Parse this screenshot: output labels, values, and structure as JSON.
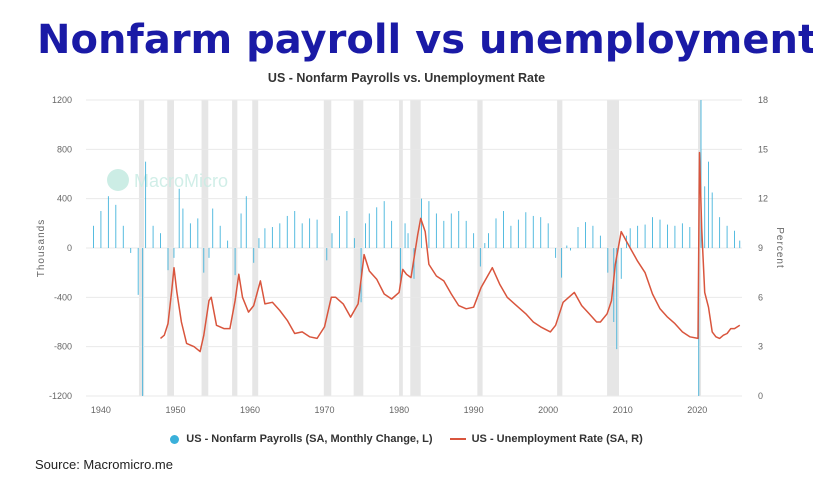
{
  "page_title": "Nonfarm payroll vs unemployment",
  "source_text": "Source: Macromicro.me",
  "watermark_text": "MacroMicro",
  "colors": {
    "payroll": "#3ab0da",
    "unemployment": "#d9553d",
    "recession": "#e6e6e6",
    "title": "#1a1aa6"
  },
  "legend": {
    "payroll": "US - Nonfarm Payrolls (SA, Monthly Change, L)",
    "unemployment": "US - Unemployment Rate (SA, R)"
  },
  "chart_data": {
    "type": "bar+line",
    "title": "US - Nonfarm Payrolls vs. Unemployment Rate",
    "ylabel_left": "Thousands",
    "ylabel_right": "Percent",
    "xlim": [
      1938,
      2026
    ],
    "ylim_left": [
      -1200,
      1200
    ],
    "ylim_right": [
      0,
      18
    ],
    "x_ticks": [
      1940,
      1950,
      1960,
      1970,
      1980,
      1990,
      2000,
      2010,
      2020
    ],
    "y_left_ticks": [
      1200,
      800,
      400,
      0,
      -400,
      -800,
      -1200
    ],
    "y_right_ticks": [
      18,
      15,
      12,
      9,
      6,
      3,
      0
    ],
    "grid": "horizontal",
    "legend_position": "bottom",
    "recessions": [
      [
        1945.1,
        1945.8
      ],
      [
        1948.9,
        1949.8
      ],
      [
        1953.5,
        1954.4
      ],
      [
        1957.6,
        1958.3
      ],
      [
        1960.3,
        1961.1
      ],
      [
        1969.9,
        1970.9
      ],
      [
        1973.9,
        1975.2
      ],
      [
        1980.0,
        1980.5
      ],
      [
        1981.5,
        1982.9
      ],
      [
        1990.5,
        1991.2
      ],
      [
        2001.2,
        2001.9
      ],
      [
        2007.9,
        2009.5
      ],
      [
        2020.1,
        2020.4
      ]
    ],
    "series": [
      {
        "name": "US - Nonfarm Payrolls (SA, Monthly Change, L)",
        "kind": "bar",
        "points": [
          [
            1939.0,
            180
          ],
          [
            1940.0,
            300
          ],
          [
            1941.0,
            420
          ],
          [
            1942.0,
            350
          ],
          [
            1943.0,
            180
          ],
          [
            1944.0,
            -40
          ],
          [
            1945.0,
            -380
          ],
          [
            1945.6,
            -1200
          ],
          [
            1946.0,
            700
          ],
          [
            1947.0,
            180
          ],
          [
            1948.0,
            120
          ],
          [
            1949.0,
            -180
          ],
          [
            1949.8,
            -80
          ],
          [
            1950.5,
            480
          ],
          [
            1951.0,
            320
          ],
          [
            1952.0,
            200
          ],
          [
            1953.0,
            240
          ],
          [
            1953.8,
            -200
          ],
          [
            1954.5,
            -80
          ],
          [
            1955.0,
            320
          ],
          [
            1956.0,
            180
          ],
          [
            1957.0,
            60
          ],
          [
            1958.0,
            -220
          ],
          [
            1958.8,
            280
          ],
          [
            1959.5,
            420
          ],
          [
            1960.5,
            -120
          ],
          [
            1961.2,
            80
          ],
          [
            1962.0,
            160
          ],
          [
            1963.0,
            170
          ],
          [
            1964.0,
            200
          ],
          [
            1965.0,
            260
          ],
          [
            1966.0,
            300
          ],
          [
            1967.0,
            200
          ],
          [
            1968.0,
            240
          ],
          [
            1969.0,
            230
          ],
          [
            1970.3,
            -100
          ],
          [
            1971.0,
            120
          ],
          [
            1972.0,
            260
          ],
          [
            1973.0,
            300
          ],
          [
            1974.0,
            80
          ],
          [
            1974.9,
            -440
          ],
          [
            1975.5,
            200
          ],
          [
            1976.0,
            280
          ],
          [
            1977.0,
            330
          ],
          [
            1978.0,
            380
          ],
          [
            1979.0,
            220
          ],
          [
            1980.2,
            -300
          ],
          [
            1980.8,
            200
          ],
          [
            1981.2,
            120
          ],
          [
            1982.0,
            -250
          ],
          [
            1983.0,
            400
          ],
          [
            1984.0,
            380
          ],
          [
            1985.0,
            280
          ],
          [
            1986.0,
            220
          ],
          [
            1987.0,
            280
          ],
          [
            1988.0,
            300
          ],
          [
            1989.0,
            220
          ],
          [
            1990.0,
            120
          ],
          [
            1990.9,
            -150
          ],
          [
            1991.5,
            40
          ],
          [
            1992.0,
            120
          ],
          [
            1993.0,
            240
          ],
          [
            1994.0,
            300
          ],
          [
            1995.0,
            180
          ],
          [
            1996.0,
            230
          ],
          [
            1997.0,
            290
          ],
          [
            1998.0,
            260
          ],
          [
            1999.0,
            250
          ],
          [
            2000.0,
            200
          ],
          [
            2001.0,
            -80
          ],
          [
            2001.8,
            -240
          ],
          [
            2002.5,
            20
          ],
          [
            2003.0,
            -20
          ],
          [
            2004.0,
            170
          ],
          [
            2005.0,
            210
          ],
          [
            2006.0,
            180
          ],
          [
            2007.0,
            100
          ],
          [
            2008.0,
            -200
          ],
          [
            2008.8,
            -600
          ],
          [
            2009.2,
            -820
          ],
          [
            2009.8,
            -250
          ],
          [
            2010.5,
            100
          ],
          [
            2011.0,
            160
          ],
          [
            2012.0,
            180
          ],
          [
            2013.0,
            190
          ],
          [
            2014.0,
            250
          ],
          [
            2015.0,
            230
          ],
          [
            2016.0,
            190
          ],
          [
            2017.0,
            180
          ],
          [
            2018.0,
            200
          ],
          [
            2019.0,
            170
          ],
          [
            2020.2,
            -1200
          ],
          [
            2020.5,
            1200
          ],
          [
            2021.0,
            500
          ],
          [
            2021.5,
            700
          ],
          [
            2022.0,
            450
          ],
          [
            2023.0,
            250
          ],
          [
            2024.0,
            180
          ],
          [
            2025.0,
            140
          ],
          [
            2025.7,
            60
          ]
        ]
      },
      {
        "name": "US - Unemployment Rate (SA, R)",
        "kind": "line",
        "points": [
          [
            1948.0,
            3.5
          ],
          [
            1948.5,
            3.7
          ],
          [
            1949.0,
            4.4
          ],
          [
            1949.5,
            6.4
          ],
          [
            1949.8,
            7.8
          ],
          [
            1950.2,
            6.3
          ],
          [
            1950.8,
            4.5
          ],
          [
            1951.5,
            3.2
          ],
          [
            1952.5,
            3.0
          ],
          [
            1953.3,
            2.7
          ],
          [
            1953.8,
            3.7
          ],
          [
            1954.5,
            5.8
          ],
          [
            1954.8,
            6.0
          ],
          [
            1955.5,
            4.3
          ],
          [
            1956.5,
            4.1
          ],
          [
            1957.3,
            4.1
          ],
          [
            1958.0,
            5.8
          ],
          [
            1958.5,
            7.4
          ],
          [
            1959.0,
            6.0
          ],
          [
            1959.8,
            5.1
          ],
          [
            1960.5,
            5.5
          ],
          [
            1961.4,
            7.0
          ],
          [
            1962.0,
            5.6
          ],
          [
            1963.0,
            5.7
          ],
          [
            1964.0,
            5.2
          ],
          [
            1965.0,
            4.6
          ],
          [
            1966.0,
            3.8
          ],
          [
            1967.0,
            3.9
          ],
          [
            1968.0,
            3.6
          ],
          [
            1969.0,
            3.5
          ],
          [
            1970.0,
            4.2
          ],
          [
            1970.9,
            6.0
          ],
          [
            1971.5,
            6.0
          ],
          [
            1972.5,
            5.6
          ],
          [
            1973.5,
            4.8
          ],
          [
            1974.5,
            5.6
          ],
          [
            1975.3,
            8.6
          ],
          [
            1976.0,
            7.6
          ],
          [
            1977.0,
            7.1
          ],
          [
            1978.0,
            6.2
          ],
          [
            1979.0,
            5.9
          ],
          [
            1980.0,
            6.3
          ],
          [
            1980.5,
            7.7
          ],
          [
            1981.0,
            7.4
          ],
          [
            1981.6,
            7.2
          ],
          [
            1982.5,
            9.8
          ],
          [
            1982.9,
            10.8
          ],
          [
            1983.5,
            10.0
          ],
          [
            1984.0,
            8.0
          ],
          [
            1985.0,
            7.3
          ],
          [
            1986.0,
            7.0
          ],
          [
            1987.0,
            6.2
          ],
          [
            1988.0,
            5.5
          ],
          [
            1989.0,
            5.3
          ],
          [
            1990.0,
            5.4
          ],
          [
            1991.0,
            6.6
          ],
          [
            1992.5,
            7.8
          ],
          [
            1993.5,
            6.8
          ],
          [
            1994.5,
            6.0
          ],
          [
            1995.5,
            5.6
          ],
          [
            1997.0,
            5.0
          ],
          [
            1998.0,
            4.5
          ],
          [
            1999.0,
            4.2
          ],
          [
            2000.3,
            3.9
          ],
          [
            2001.0,
            4.3
          ],
          [
            2002.0,
            5.7
          ],
          [
            2003.5,
            6.3
          ],
          [
            2004.5,
            5.5
          ],
          [
            2005.5,
            5.0
          ],
          [
            2006.5,
            4.5
          ],
          [
            2007.0,
            4.5
          ],
          [
            2007.9,
            5.0
          ],
          [
            2008.5,
            5.8
          ],
          [
            2009.0,
            8.0
          ],
          [
            2009.8,
            10.0
          ],
          [
            2010.5,
            9.4
          ],
          [
            2011.0,
            9.0
          ],
          [
            2012.0,
            8.2
          ],
          [
            2013.0,
            7.5
          ],
          [
            2014.0,
            6.2
          ],
          [
            2015.0,
            5.3
          ],
          [
            2016.0,
            4.8
          ],
          [
            2017.0,
            4.4
          ],
          [
            2018.0,
            3.9
          ],
          [
            2019.0,
            3.6
          ],
          [
            2020.1,
            3.5
          ],
          [
            2020.3,
            14.8
          ],
          [
            2020.6,
            10.2
          ],
          [
            2021.0,
            6.3
          ],
          [
            2021.5,
            5.4
          ],
          [
            2022.0,
            3.9
          ],
          [
            2022.5,
            3.6
          ],
          [
            2023.0,
            3.5
          ],
          [
            2023.5,
            3.7
          ],
          [
            2024.0,
            3.8
          ],
          [
            2024.5,
            4.1
          ],
          [
            2025.0,
            4.1
          ],
          [
            2025.7,
            4.3
          ]
        ]
      }
    ]
  }
}
